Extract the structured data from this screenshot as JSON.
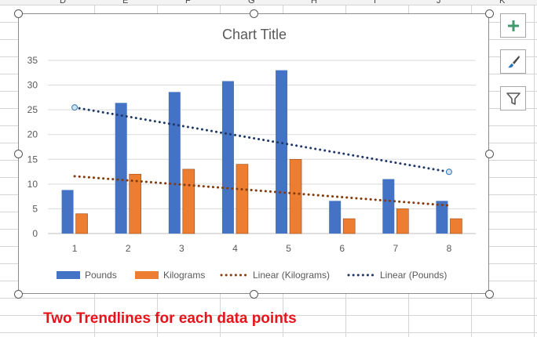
{
  "spreadsheet": {
    "column_headers": [
      "D",
      "E",
      "F",
      "G",
      "H",
      "I",
      "J",
      "K"
    ]
  },
  "chart_data": {
    "type": "bar",
    "title": "Chart Title",
    "categories": [
      "1",
      "2",
      "3",
      "4",
      "5",
      "6",
      "7",
      "8"
    ],
    "series": [
      {
        "name": "Pounds",
        "values": [
          8.8,
          26.4,
          28.6,
          30.8,
          33,
          6.6,
          11,
          6.6
        ],
        "color": "#4472c4"
      },
      {
        "name": "Kilograms",
        "values": [
          4,
          12,
          13,
          14,
          15,
          3,
          5,
          3
        ],
        "color": "#ed7d31"
      }
    ],
    "trendlines": [
      {
        "name": "Linear (Kilograms)",
        "of": "Kilograms",
        "color": "#843c0c"
      },
      {
        "name": "Linear (Pounds)",
        "of": "Pounds",
        "color": "#1f3864"
      }
    ],
    "yticks": [
      "0",
      "5",
      "10",
      "15",
      "20",
      "25",
      "30",
      "35"
    ],
    "ylim": [
      0,
      35
    ],
    "grid": true,
    "legend": "bottom"
  },
  "side_buttons": {
    "elements_icon": "plus-icon",
    "styles_icon": "paintbrush-icon",
    "filter_icon": "funnel-icon",
    "accent": "#3f9b6b"
  },
  "caption": "Two Trendlines for each data points"
}
